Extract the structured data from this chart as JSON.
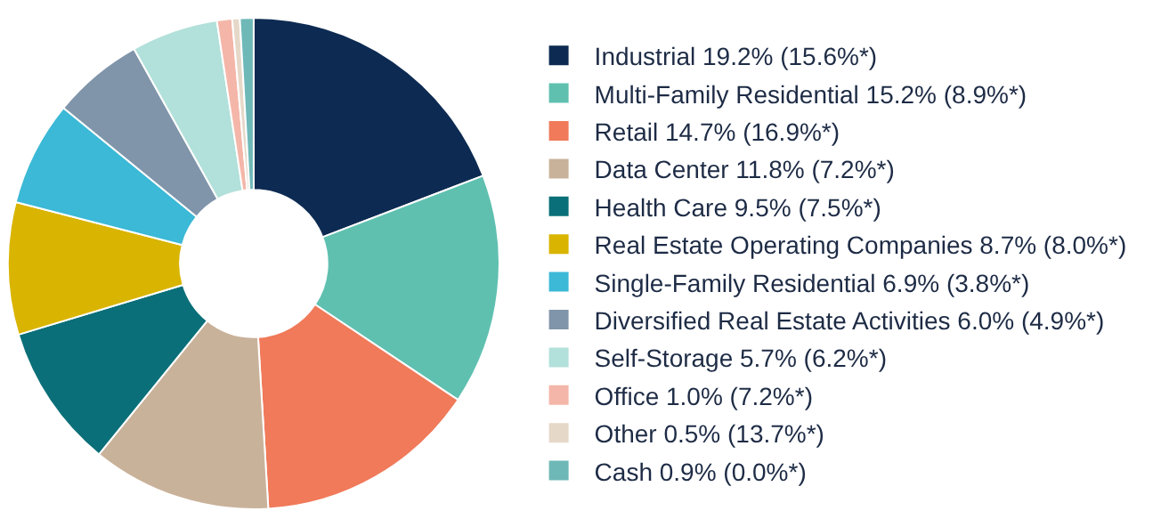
{
  "chart_data": {
    "type": "donut",
    "legend": "right",
    "categories": [
      "Industrial 19.2% (15.6%*)",
      "Multi-Family Residential 15.2% (8.9%*)",
      "Retail 14.7% (16.9%*)",
      "Data Center 11.8% (7.2%*)",
      "Health Care 9.5% (7.5%*)",
      "Real Estate Operating Companies 8.7% (8.0%*)",
      "Single-Family Residential 6.9% (3.8%*)",
      "Diversified Real Estate Activities 6.0% (4.9%*)",
      "Self-Storage 5.7% (6.2%*)",
      "Office 1.0% (7.2%*)",
      "Other 0.5% (13.7%*)",
      "Cash 0.9% (0.0%*)"
    ],
    "values": [
      19.2,
      15.2,
      14.7,
      11.8,
      9.5,
      8.7,
      6.9,
      6.0,
      5.7,
      1.0,
      0.5,
      0.9
    ],
    "colors": [
      "#0d2b52",
      "#5fc0b0",
      "#f07a5a",
      "#c9b29a",
      "#0a6f78",
      "#d9b400",
      "#3bb9d6",
      "#8095aa",
      "#b2e0da",
      "#f4b6a8",
      "#e6d8c8",
      "#6fb8b8"
    ]
  }
}
